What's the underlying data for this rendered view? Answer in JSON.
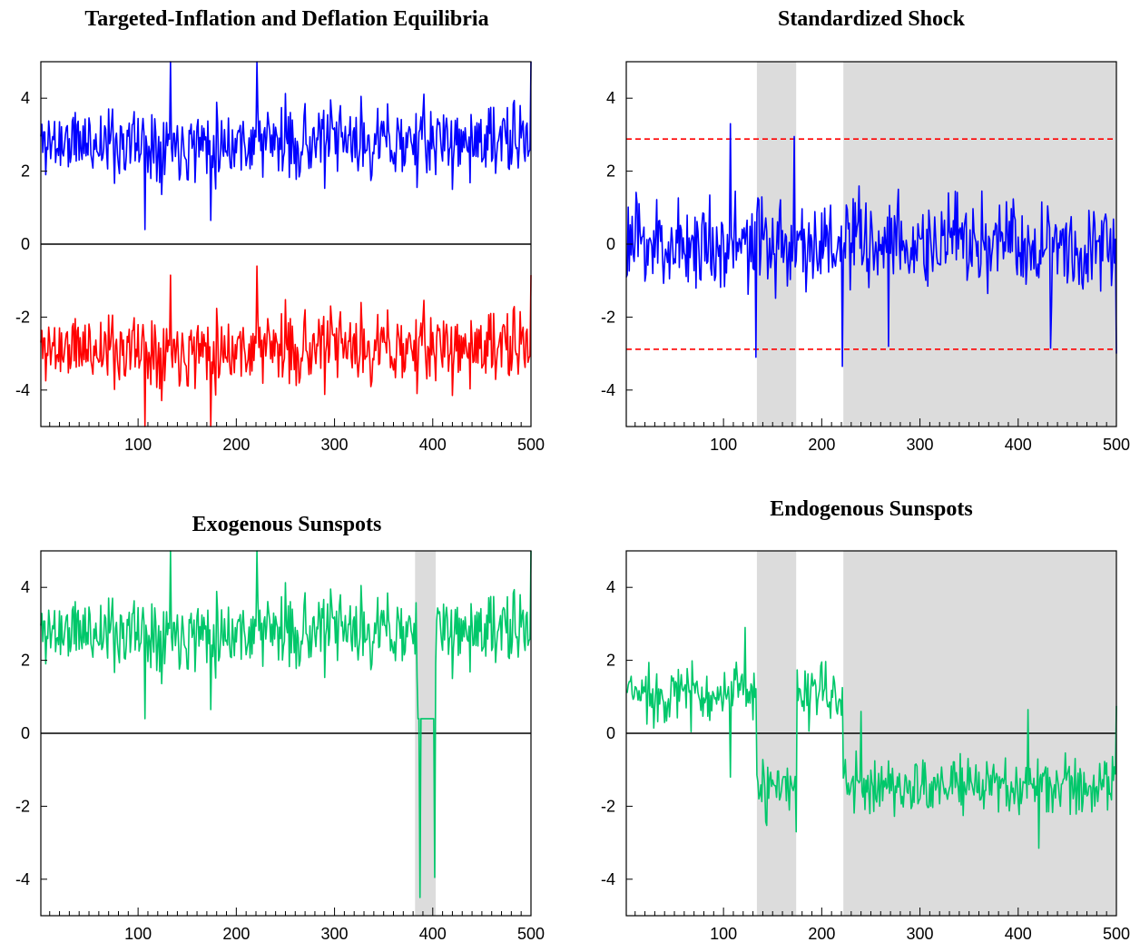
{
  "chart_data": [
    {
      "type": "line",
      "title": "Targeted-Inflation and Deflation Equilibria",
      "xlabel": "",
      "ylabel": "",
      "xlim": [
        1,
        500
      ],
      "ylim": [
        -5,
        5
      ],
      "x_ticks": [
        100,
        200,
        300,
        400,
        500
      ],
      "y_ticks": [
        4,
        2,
        0,
        -2,
        -4
      ],
      "x_tick_labels": [
        "100",
        "200",
        "300",
        "400",
        "500"
      ],
      "y_tick_labels": [
        "4",
        "2",
        "0",
        "-2",
        "-4"
      ],
      "reference_lines": [
        {
          "y": 0,
          "color": "#000000",
          "style": "solid"
        }
      ],
      "shaded_regions": [],
      "series": [
        {
          "color": "#0000ff",
          "mean": 2.8,
          "amplitude": 0.75,
          "seed": 11,
          "clip": [
            0.4,
            5.0
          ],
          "spikes": [
            [
              107,
              0.4
            ],
            [
              133,
              5.0
            ],
            [
              174,
              0.65
            ],
            [
              221,
              5.0
            ],
            [
              500,
              5.0
            ]
          ]
        },
        {
          "color": "#ff0000",
          "mean": -2.85,
          "amplitude": 0.75,
          "seed": 11,
          "clip": [
            -5.0,
            -0.6
          ],
          "spikes": [
            [
              107,
              -5.0
            ],
            [
              133,
              -0.85
            ],
            [
              174,
              -5.0
            ],
            [
              221,
              -0.6
            ],
            [
              500,
              -0.85
            ]
          ]
        }
      ]
    },
    {
      "type": "line",
      "title": "Standardized Shock",
      "xlabel": "",
      "ylabel": "",
      "xlim": [
        1,
        500
      ],
      "ylim": [
        -5,
        5
      ],
      "x_ticks": [
        100,
        200,
        300,
        400,
        500
      ],
      "y_ticks": [
        4,
        2,
        0,
        -2,
        -4
      ],
      "x_tick_labels": [
        "100",
        "200",
        "300",
        "400",
        "500"
      ],
      "y_tick_labels": [
        "4",
        "2",
        "0",
        "-2",
        "-4"
      ],
      "reference_lines": [
        {
          "y": 2.88,
          "color": "#ff0000",
          "style": "dashed"
        },
        {
          "y": -2.88,
          "color": "#ff0000",
          "style": "dashed"
        }
      ],
      "shaded_regions": [
        [
          134,
          174
        ],
        [
          222,
          500
        ]
      ],
      "series": [
        {
          "color": "#0000ff",
          "mean": 0.0,
          "amplitude": 0.95,
          "seed": 23,
          "clip": [
            -3.4,
            3.4
          ],
          "spikes": [
            [
              107,
              3.3
            ],
            [
              133,
              -3.1
            ],
            [
              172,
              2.95
            ],
            [
              221,
              -3.35
            ],
            [
              268,
              -2.8
            ],
            [
              433,
              -2.85
            ],
            [
              500,
              -3.0
            ]
          ]
        }
      ]
    },
    {
      "type": "line",
      "title": "Exogenous Sunspots",
      "xlabel": "",
      "ylabel": "",
      "xlim": [
        1,
        500
      ],
      "ylim": [
        -5,
        5
      ],
      "x_ticks": [
        100,
        200,
        300,
        400,
        500
      ],
      "y_ticks": [
        4,
        2,
        0,
        -2,
        -4
      ],
      "x_tick_labels": [
        "100",
        "200",
        "300",
        "400",
        "500"
      ],
      "y_tick_labels": [
        "4",
        "2",
        "0",
        "-2",
        "-4"
      ],
      "reference_lines": [
        {
          "y": 0,
          "color": "#000000",
          "style": "solid"
        }
      ],
      "shaded_regions": [
        [
          382,
          403
        ]
      ],
      "series": [
        {
          "color": "#00c76a",
          "mean": 2.8,
          "amplitude": 0.75,
          "seed": 11,
          "clip": [
            0.4,
            5.0
          ],
          "regimes": [
            [
              385,
              402,
              -3.0,
              0.45
            ]
          ],
          "spikes": [
            [
              107,
              0.4
            ],
            [
              133,
              5.0
            ],
            [
              174,
              0.65
            ],
            [
              221,
              5.0
            ],
            [
              387,
              -4.5
            ],
            [
              402,
              -3.95
            ],
            [
              500,
              5.0
            ]
          ]
        }
      ]
    },
    {
      "type": "line",
      "title": "Endogenous Sunspots",
      "xlabel": "",
      "ylabel": "",
      "xlim": [
        1,
        500
      ],
      "ylim": [
        -5,
        5
      ],
      "x_ticks": [
        100,
        200,
        300,
        400,
        500
      ],
      "y_ticks": [
        4,
        2,
        0,
        -2,
        -4
      ],
      "x_tick_labels": [
        "100",
        "200",
        "300",
        "400",
        "500"
      ],
      "y_tick_labels": [
        "4",
        "2",
        "0",
        "-2",
        "-4"
      ],
      "reference_lines": [
        {
          "y": 0,
          "color": "#000000",
          "style": "solid"
        }
      ],
      "shaded_regions": [
        [
          134,
          174
        ],
        [
          222,
          500
        ]
      ],
      "series": [
        {
          "color": "#00c76a",
          "mean": 1.1,
          "amplitude": 0.6,
          "seed": 37,
          "clip": [
            -3.2,
            3.0
          ],
          "regimes": [
            [
              134,
              174,
              -1.55,
              0.55
            ],
            [
              222,
              500,
              -1.45,
              0.6
            ]
          ],
          "spikes": [
            [
              107,
              -1.2
            ],
            [
              122,
              2.9
            ],
            [
              174,
              -2.7
            ],
            [
              240,
              0.6
            ],
            [
              410,
              0.65
            ],
            [
              421,
              -3.15
            ],
            [
              500,
              0.75
            ]
          ]
        }
      ]
    }
  ]
}
